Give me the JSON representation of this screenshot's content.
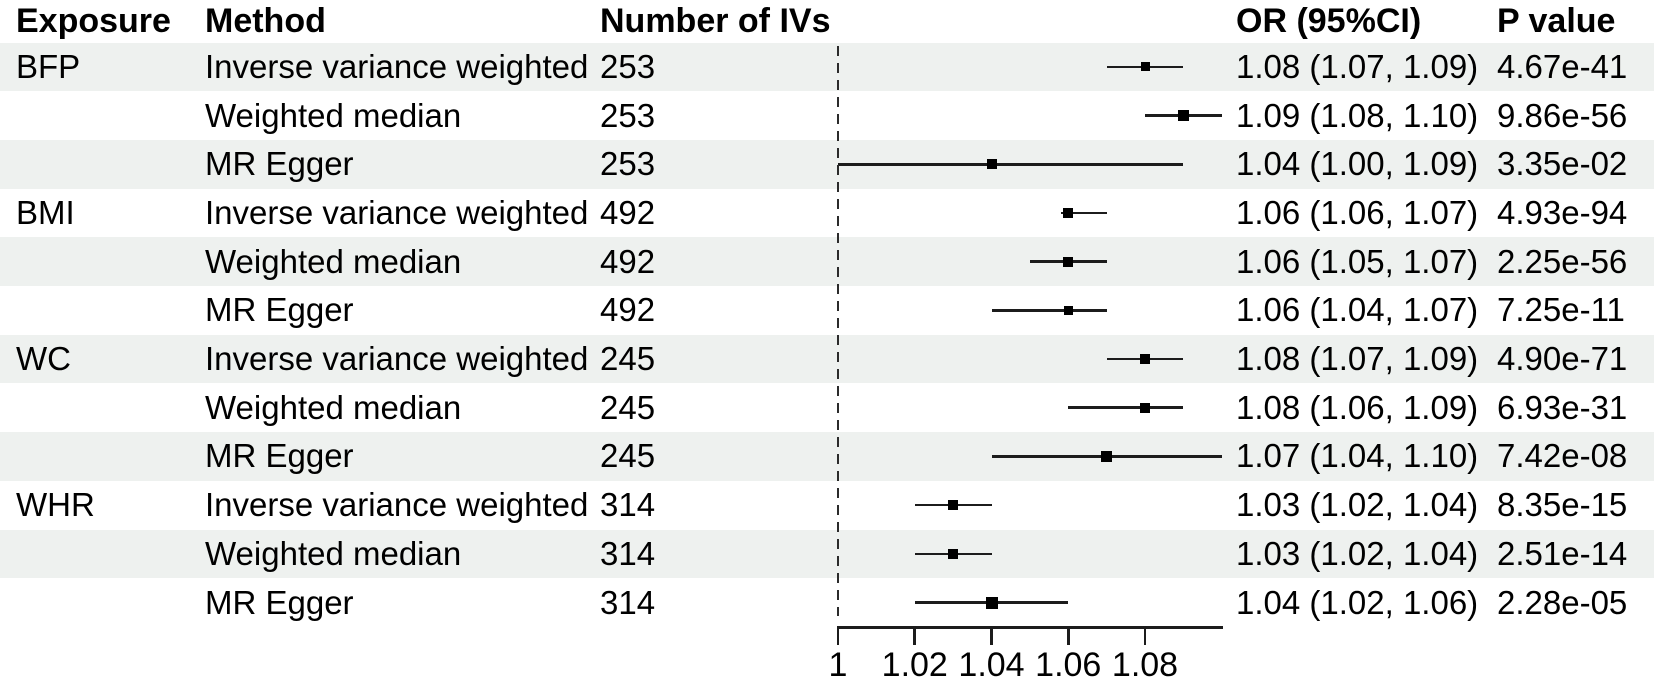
{
  "columns": {
    "exposure": "Exposure",
    "method": "Method",
    "n_ivs": "Number of IVs",
    "or_ci": "OR (95%CI)",
    "p_value": "P value"
  },
  "chart_data": {
    "type": "forest",
    "title": "",
    "xlabel": "",
    "x_ticks": [
      "1",
      "1.02",
      "1.04",
      "1.06",
      "1.08"
    ],
    "x_tick_values": [
      1,
      1.02,
      1.04,
      1.06,
      1.08
    ],
    "x_range": [
      1.0,
      1.101
    ],
    "reference_line": 1.0,
    "grid": false,
    "stripe_color": "#eef1ef",
    "line_color": "#1c1c1c",
    "rows": [
      {
        "exposure": "BFP",
        "method": "Inverse variance weighted",
        "n_ivs": "253",
        "or": 1.08,
        "ci_low": 1.07,
        "ci_high": 1.09,
        "or_ci": "1.08 (1.07, 1.09)",
        "p_value": "4.67e-41",
        "marker_size": 9
      },
      {
        "exposure": "",
        "method": "Weighted median",
        "n_ivs": "253",
        "or": 1.09,
        "ci_low": 1.08,
        "ci_high": 1.1,
        "or_ci": "1.09 (1.08, 1.10)",
        "p_value": "9.86e-56",
        "marker_size": 11
      },
      {
        "exposure": "",
        "method": "MR Egger",
        "n_ivs": "253",
        "or": 1.04,
        "ci_low": 1.0,
        "ci_high": 1.09,
        "or_ci": "1.04 (1.00, 1.09)",
        "p_value": "3.35e-02",
        "marker_size": 10
      },
      {
        "exposure": "BMI",
        "method": "Inverse variance weighted",
        "n_ivs": "492",
        "or": 1.06,
        "ci_low": 1.06,
        "ci_high": 1.07,
        "draw_low": 1.058,
        "or_ci": "1.06 (1.06, 1.07)",
        "p_value": "4.93e-94",
        "marker_size": 10
      },
      {
        "exposure": "",
        "method": "Weighted median",
        "n_ivs": "492",
        "or": 1.06,
        "ci_low": 1.05,
        "ci_high": 1.07,
        "or_ci": "1.06 (1.05, 1.07)",
        "p_value": "2.25e-56",
        "marker_size": 10
      },
      {
        "exposure": "",
        "method": "MR Egger",
        "n_ivs": "492",
        "or": 1.06,
        "ci_low": 1.04,
        "ci_high": 1.07,
        "or_ci": "1.06 (1.04, 1.07)",
        "p_value": "7.25e-11",
        "marker_size": 9
      },
      {
        "exposure": "WC",
        "method": "Inverse variance weighted",
        "n_ivs": "245",
        "or": 1.08,
        "ci_low": 1.07,
        "ci_high": 1.09,
        "or_ci": "1.08 (1.07, 1.09)",
        "p_value": "4.90e-71",
        "marker_size": 10
      },
      {
        "exposure": "",
        "method": "Weighted median",
        "n_ivs": "245",
        "or": 1.08,
        "ci_low": 1.06,
        "ci_high": 1.09,
        "or_ci": "1.08 (1.06, 1.09)",
        "p_value": "6.93e-31",
        "marker_size": 10
      },
      {
        "exposure": "",
        "method": "MR Egger",
        "n_ivs": "245",
        "or": 1.07,
        "ci_low": 1.04,
        "ci_high": 1.1,
        "or_ci": "1.07 (1.04, 1.10)",
        "p_value": "7.42e-08",
        "marker_size": 11
      },
      {
        "exposure": "WHR",
        "method": "Inverse variance weighted",
        "n_ivs": "314",
        "or": 1.03,
        "ci_low": 1.02,
        "ci_high": 1.04,
        "or_ci": "1.03 (1.02, 1.04)",
        "p_value": "8.35e-15",
        "marker_size": 10
      },
      {
        "exposure": "",
        "method": "Weighted median",
        "n_ivs": "314",
        "or": 1.03,
        "ci_low": 1.02,
        "ci_high": 1.04,
        "or_ci": "1.03 (1.02, 1.04)",
        "p_value": "2.51e-14",
        "marker_size": 10
      },
      {
        "exposure": "",
        "method": "MR Egger",
        "n_ivs": "314",
        "or": 1.04,
        "ci_low": 1.02,
        "ci_high": 1.06,
        "or_ci": "1.04 (1.02, 1.06)",
        "p_value": "2.28e-05",
        "marker_size": 12
      }
    ]
  }
}
